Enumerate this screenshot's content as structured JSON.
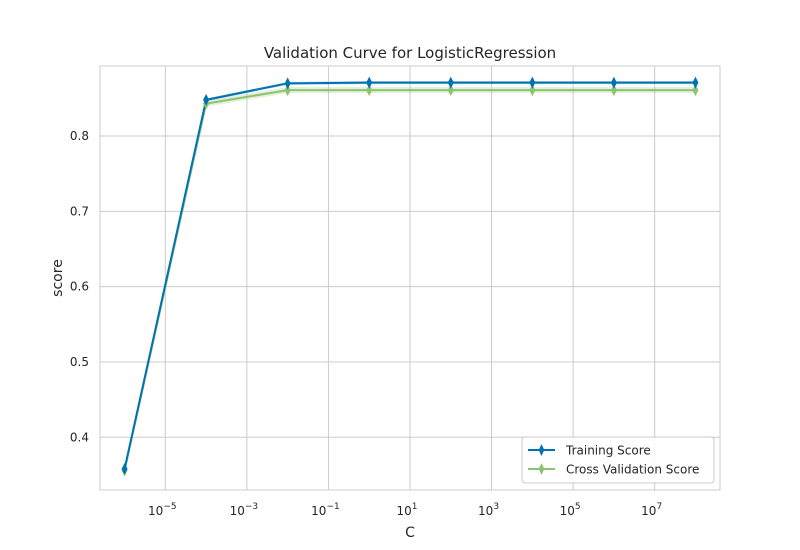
{
  "chart_data": {
    "type": "line",
    "title": "Validation Curve for LogisticRegression",
    "xlabel": "C",
    "ylabel": "score",
    "xscale": "log",
    "x": [
      1e-06,
      0.0001,
      0.01,
      1,
      100,
      10000,
      1000000,
      100000000
    ],
    "xlim": [
      2.5e-07,
      400000000
    ],
    "ylim": [
      0.33,
      0.893
    ],
    "xticks": [
      {
        "value": 1e-05,
        "base": "10",
        "exp": "−5"
      },
      {
        "value": 0.001,
        "base": "10",
        "exp": "−3"
      },
      {
        "value": 0.1,
        "base": "10",
        "exp": "−1"
      },
      {
        "value": 10,
        "base": "10",
        "exp": "1"
      },
      {
        "value": 1000,
        "base": "10",
        "exp": "3"
      },
      {
        "value": 100000,
        "base": "10",
        "exp": "5"
      },
      {
        "value": 10000000,
        "base": "10",
        "exp": "7"
      }
    ],
    "yticks": [
      {
        "value": 0.4,
        "label": "0.4"
      },
      {
        "value": 0.5,
        "label": "0.5"
      },
      {
        "value": 0.6,
        "label": "0.6"
      },
      {
        "value": 0.7,
        "label": "0.7"
      },
      {
        "value": 0.8,
        "label": "0.8"
      }
    ],
    "grid": true,
    "legend_position": "lower-right",
    "series": [
      {
        "name": "Training Score",
        "color": "#0072b2",
        "marker": "thin-diamond",
        "values": [
          0.358,
          0.848,
          0.87,
          0.871,
          0.871,
          0.871,
          0.871,
          0.871
        ],
        "band": 0.002
      },
      {
        "name": "Cross Validation Score",
        "color": "#8fc26f",
        "marker": "thin-diamond",
        "values": [
          0.356,
          0.843,
          0.861,
          0.861,
          0.861,
          0.861,
          0.861,
          0.861
        ],
        "band": 0.004
      }
    ]
  }
}
